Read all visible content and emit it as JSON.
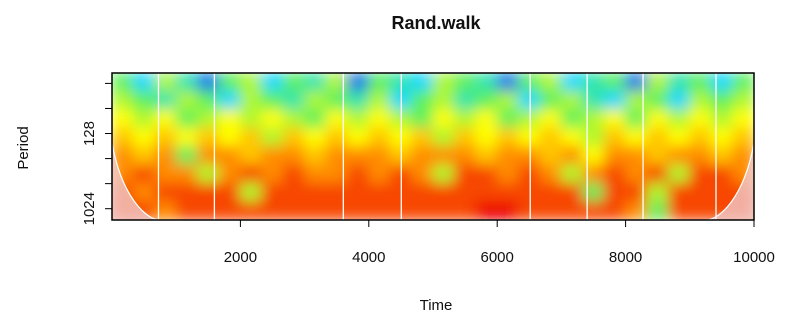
{
  "chart_data": {
    "type": "heatmap",
    "title": "Rand.walk",
    "x_label": "Time",
    "y_label": "Period",
    "xlim": [
      0,
      10000
    ],
    "xticks": [
      2000,
      4000,
      6000,
      8000,
      10000
    ],
    "ylim": [
      24,
      1400
    ],
    "ylog": true,
    "y_reversed": true,
    "yticks": [
      {
        "value": 32,
        "label": null
      },
      {
        "value": 64,
        "label": null
      },
      128,
      {
        "value": 256,
        "label": null
      },
      {
        "value": 512,
        "label": null
      },
      1024
    ],
    "colormap": [
      "#1010d0",
      "#00d8ff",
      "#5cf05c",
      "#ffff00",
      "#ff8c00",
      "#ee0000"
    ],
    "zlim": [
      0,
      10
    ],
    "z": [
      [
        4,
        2,
        5,
        3,
        1,
        4,
        5,
        2,
        4,
        3,
        5,
        1,
        4,
        3,
        2,
        5,
        4,
        3,
        1,
        4,
        5,
        2,
        3,
        4,
        1,
        5,
        3,
        4,
        2,
        4
      ],
      [
        5,
        4,
        3,
        5,
        4,
        2,
        5,
        4,
        3,
        5,
        4,
        3,
        5,
        2,
        4,
        5,
        3,
        4,
        5,
        2,
        4,
        5,
        3,
        2,
        5,
        4,
        2,
        5,
        4,
        5
      ],
      [
        6,
        5,
        6,
        4,
        5,
        6,
        5,
        6,
        5,
        4,
        6,
        5,
        6,
        5,
        4,
        6,
        5,
        6,
        4,
        5,
        6,
        4,
        5,
        6,
        4,
        6,
        5,
        6,
        5,
        6
      ],
      [
        7,
        6,
        7,
        6,
        7,
        6,
        7,
        5,
        7,
        6,
        7,
        6,
        7,
        6,
        7,
        5,
        7,
        6,
        7,
        6,
        7,
        6,
        5,
        7,
        6,
        7,
        6,
        7,
        6,
        7
      ],
      [
        8,
        7,
        8,
        4,
        8,
        8,
        7,
        8,
        8,
        7,
        8,
        8,
        8,
        7,
        8,
        8,
        8,
        7,
        8,
        8,
        7,
        8,
        6,
        8,
        8,
        7,
        8,
        8,
        7,
        8
      ],
      [
        8,
        9,
        8,
        8,
        5,
        8,
        9,
        8,
        9,
        8,
        8,
        9,
        8,
        9,
        8,
        5,
        9,
        9,
        8,
        9,
        8,
        5,
        8,
        9,
        8,
        9,
        5,
        9,
        9,
        8
      ],
      [
        9,
        8,
        9,
        9,
        9,
        9,
        5,
        9,
        9,
        9,
        9,
        9,
        9,
        9,
        9,
        9,
        9,
        9,
        9,
        9,
        9,
        9,
        4,
        9,
        9,
        5,
        9,
        9,
        9,
        9
      ],
      [
        9,
        9,
        8,
        9,
        9,
        9,
        9,
        9,
        9,
        9,
        9,
        9,
        9,
        9,
        9,
        9,
        9,
        10,
        10,
        9,
        9,
        9,
        9,
        9,
        8,
        4,
        9,
        9,
        9,
        9
      ]
    ],
    "vlines": [
      724,
      1595,
      3603,
      4506,
      6514,
      7401,
      8272,
      9408
    ],
    "vline_color": "#ffffff"
  }
}
